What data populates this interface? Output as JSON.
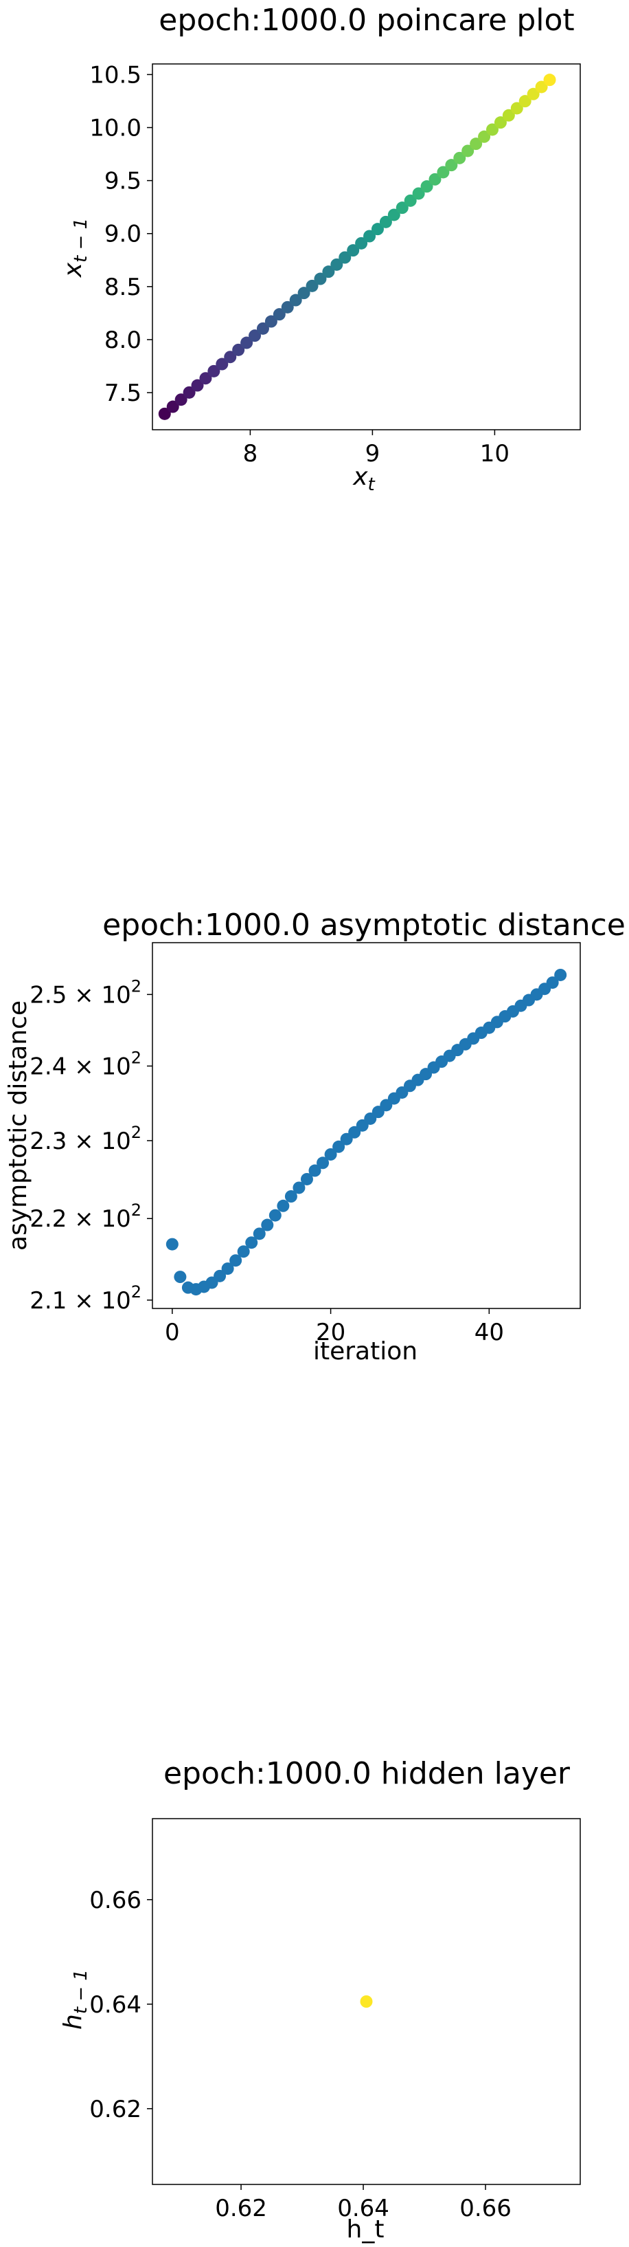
{
  "chart_data": [
    {
      "type": "scatter",
      "title": "epoch:1000.0 poincare plot",
      "xlabel": "x_t",
      "ylabel": "x_{t-1}",
      "xlim": [
        7.2,
        10.7
      ],
      "ylim": [
        7.15,
        10.6
      ],
      "x_ticks": [
        8,
        9,
        10
      ],
      "y_ticks": [
        7.5,
        8.0,
        8.5,
        9.0,
        9.5,
        10.0,
        10.5
      ],
      "x_tick_labels": [
        "8",
        "9",
        "10"
      ],
      "y_tick_labels": [
        "7.5",
        "8.0",
        "8.5",
        "9.0",
        "9.5",
        "10.0",
        "10.5"
      ],
      "colormap": "viridis",
      "grid": false,
      "n_points": 48,
      "x_range": [
        7.3,
        10.45
      ],
      "y_range": [
        7.3,
        10.45
      ]
    },
    {
      "type": "scatter",
      "title": "epoch:1000.0 asymptotic distance",
      "xlabel": "iteration",
      "ylabel": "asymptotic distance",
      "yscale": "log",
      "xlim": [
        -2.5,
        51.5
      ],
      "ylim": [
        209,
        257.5
      ],
      "x_ticks": [
        0,
        20,
        40
      ],
      "x_tick_labels": [
        "0",
        "20",
        "40"
      ],
      "y_ticks": [
        210,
        220,
        230,
        240,
        250
      ],
      "y_tick_labels": [
        [
          "2.1",
          "2"
        ],
        [
          "2.2",
          "2"
        ],
        [
          "2.3",
          "2"
        ],
        [
          "2.4",
          "2"
        ],
        [
          "2.5",
          "2"
        ]
      ],
      "color": "#1f77b4",
      "grid": false,
      "x": [
        0,
        1,
        2,
        3,
        4,
        5,
        6,
        7,
        8,
        9,
        10,
        11,
        12,
        13,
        14,
        15,
        16,
        17,
        18,
        19,
        20,
        21,
        22,
        23,
        24,
        25,
        26,
        27,
        28,
        29,
        30,
        31,
        32,
        33,
        34,
        35,
        36,
        37,
        38,
        39,
        40,
        41,
        42,
        43,
        44,
        45,
        46,
        47,
        48,
        49
      ],
      "y": [
        216.8,
        212.8,
        211.5,
        211.3,
        211.6,
        212.1,
        212.9,
        213.8,
        214.8,
        215.9,
        217.0,
        218.1,
        219.2,
        220.4,
        221.6,
        222.8,
        223.9,
        225.0,
        226.1,
        227.1,
        228.2,
        229.2,
        230.2,
        231.1,
        232.0,
        232.9,
        233.8,
        234.7,
        235.6,
        236.4,
        237.3,
        238.1,
        238.9,
        239.8,
        240.6,
        241.4,
        242.2,
        243.0,
        243.8,
        244.6,
        245.3,
        246.1,
        246.9,
        247.6,
        248.4,
        249.2,
        250.0,
        250.8,
        251.7,
        252.8
      ]
    },
    {
      "type": "scatter",
      "title": "epoch:1000.0 hidden layer",
      "xlabel": "h_t",
      "ylabel": "h_{t-1}",
      "xlim": [
        0.6055,
        0.6755
      ],
      "ylim": [
        0.6055,
        0.6755
      ],
      "x_ticks": [
        0.62,
        0.64,
        0.66
      ],
      "y_ticks": [
        0.62,
        0.64,
        0.66
      ],
      "x_tick_labels": [
        "0.62",
        "0.64",
        "0.66"
      ],
      "y_tick_labels": [
        "0.62",
        "0.64",
        "0.66"
      ],
      "color": "#fde725",
      "grid": false,
      "x": [
        0.6405
      ],
      "y": [
        0.6405
      ]
    }
  ]
}
